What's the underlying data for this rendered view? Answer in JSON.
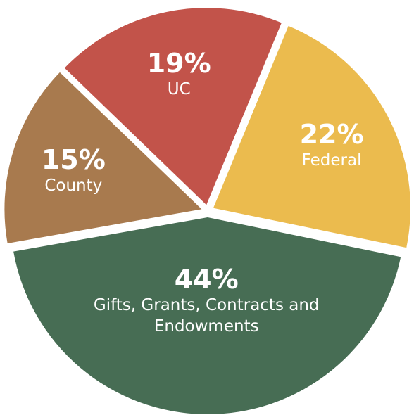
{
  "chart_data": {
    "type": "pie",
    "categories": [
      "UC",
      "Federal",
      "Gifts, Grants, Contracts and Endowments",
      "County"
    ],
    "values": [
      19,
      22,
      44,
      15
    ],
    "value_labels": [
      "19%",
      "22%",
      "44%",
      "15%"
    ],
    "colors": [
      "#c2534a",
      "#ebbb4e",
      "#476d54",
      "#a87a4e"
    ]
  }
}
